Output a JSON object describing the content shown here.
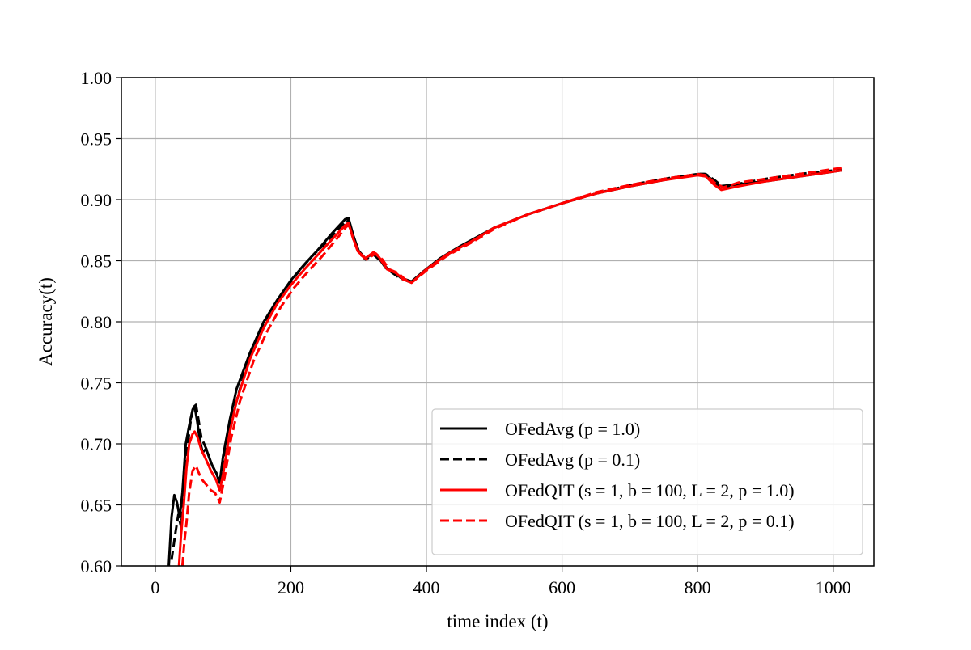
{
  "chart_data": {
    "type": "line",
    "title": "",
    "xlabel": "time index (t)",
    "ylabel": "Accuracy(t)",
    "xlim": [
      -50,
      1060
    ],
    "ylim": [
      0.6,
      1.0
    ],
    "xticks": [
      0,
      200,
      400,
      600,
      800,
      1000
    ],
    "yticks": [
      0.6,
      0.65,
      0.7,
      0.75,
      0.8,
      0.85,
      0.9,
      0.95,
      1.0
    ],
    "xtick_labels": [
      "0",
      "200",
      "400",
      "600",
      "800",
      "1000"
    ],
    "ytick_labels": [
      "0.60",
      "0.65",
      "0.70",
      "0.75",
      "0.80",
      "0.85",
      "0.90",
      "0.95",
      "1.00"
    ],
    "grid": true,
    "legend_position": "lower-right",
    "series": [
      {
        "name": "OFedAvg (p = 1.0)",
        "color": "#000000",
        "dash": "solid",
        "points": [
          [
            20,
            0.6
          ],
          [
            24,
            0.64
          ],
          [
            28,
            0.658
          ],
          [
            32,
            0.652
          ],
          [
            36,
            0.64
          ],
          [
            40,
            0.66
          ],
          [
            45,
            0.7
          ],
          [
            50,
            0.715
          ],
          [
            55,
            0.728
          ],
          [
            58,
            0.731
          ],
          [
            62,
            0.718
          ],
          [
            66,
            0.702
          ],
          [
            70,
            0.693
          ],
          [
            75,
            0.696
          ],
          [
            80,
            0.688
          ],
          [
            85,
            0.681
          ],
          [
            90,
            0.676
          ],
          [
            95,
            0.668
          ],
          [
            100,
            0.69
          ],
          [
            110,
            0.72
          ],
          [
            120,
            0.745
          ],
          [
            140,
            0.775
          ],
          [
            160,
            0.8
          ],
          [
            180,
            0.818
          ],
          [
            200,
            0.834
          ],
          [
            220,
            0.847
          ],
          [
            240,
            0.859
          ],
          [
            260,
            0.872
          ],
          [
            280,
            0.884
          ],
          [
            285,
            0.885
          ],
          [
            292,
            0.871
          ],
          [
            300,
            0.858
          ],
          [
            310,
            0.852
          ],
          [
            322,
            0.856
          ],
          [
            330,
            0.852
          ],
          [
            340,
            0.844
          ],
          [
            352,
            0.841
          ],
          [
            362,
            0.836
          ],
          [
            378,
            0.833
          ],
          [
            395,
            0.841
          ],
          [
            420,
            0.852
          ],
          [
            450,
            0.862
          ],
          [
            500,
            0.877
          ],
          [
            550,
            0.888
          ],
          [
            600,
            0.897
          ],
          [
            650,
            0.905
          ],
          [
            700,
            0.911
          ],
          [
            750,
            0.916
          ],
          [
            800,
            0.921
          ],
          [
            810,
            0.921
          ],
          [
            820,
            0.917
          ],
          [
            832,
            0.911
          ],
          [
            850,
            0.912
          ],
          [
            900,
            0.915
          ],
          [
            950,
            0.919
          ],
          [
            1000,
            0.923
          ],
          [
            1012,
            0.924
          ]
        ]
      },
      {
        "name": "OFedAvg (p = 0.1)",
        "color": "#000000",
        "dash": "dashed",
        "points": [
          [
            24,
            0.605
          ],
          [
            30,
            0.628
          ],
          [
            34,
            0.642
          ],
          [
            38,
            0.632
          ],
          [
            42,
            0.655
          ],
          [
            48,
            0.7
          ],
          [
            52,
            0.718
          ],
          [
            56,
            0.73
          ],
          [
            60,
            0.732
          ],
          [
            63,
            0.722
          ],
          [
            68,
            0.705
          ],
          [
            72,
            0.7
          ],
          [
            76,
            0.695
          ],
          [
            82,
            0.685
          ],
          [
            88,
            0.678
          ],
          [
            96,
            0.671
          ],
          [
            105,
            0.695
          ],
          [
            115,
            0.725
          ],
          [
            130,
            0.755
          ],
          [
            150,
            0.785
          ],
          [
            170,
            0.808
          ],
          [
            190,
            0.826
          ],
          [
            210,
            0.84
          ],
          [
            230,
            0.853
          ],
          [
            250,
            0.864
          ],
          [
            270,
            0.876
          ],
          [
            283,
            0.883
          ],
          [
            292,
            0.87
          ],
          [
            300,
            0.858
          ],
          [
            310,
            0.851
          ],
          [
            322,
            0.855
          ],
          [
            332,
            0.85
          ],
          [
            345,
            0.842
          ],
          [
            360,
            0.836
          ],
          [
            378,
            0.832
          ],
          [
            400,
            0.843
          ],
          [
            430,
            0.855
          ],
          [
            470,
            0.867
          ],
          [
            500,
            0.877
          ],
          [
            550,
            0.888
          ],
          [
            600,
            0.897
          ],
          [
            650,
            0.905
          ],
          [
            700,
            0.912
          ],
          [
            750,
            0.917
          ],
          [
            800,
            0.921
          ],
          [
            812,
            0.921
          ],
          [
            825,
            0.916
          ],
          [
            838,
            0.91
          ],
          [
            860,
            0.913
          ],
          [
            900,
            0.917
          ],
          [
            950,
            0.921
          ],
          [
            1000,
            0.924
          ],
          [
            1012,
            0.925
          ]
        ]
      },
      {
        "name": "OFedQIT (s = 1, b = 100, L = 2, p = 1.0)",
        "color": "#ff0000",
        "dash": "solid",
        "points": [
          [
            35,
            0.6
          ],
          [
            38,
            0.625
          ],
          [
            42,
            0.65
          ],
          [
            46,
            0.68
          ],
          [
            50,
            0.7
          ],
          [
            55,
            0.708
          ],
          [
            58,
            0.71
          ],
          [
            62,
            0.706
          ],
          [
            68,
            0.695
          ],
          [
            75,
            0.687
          ],
          [
            82,
            0.678
          ],
          [
            90,
            0.67
          ],
          [
            95,
            0.662
          ],
          [
            100,
            0.675
          ],
          [
            110,
            0.71
          ],
          [
            120,
            0.735
          ],
          [
            140,
            0.77
          ],
          [
            160,
            0.795
          ],
          [
            180,
            0.815
          ],
          [
            200,
            0.83
          ],
          [
            220,
            0.843
          ],
          [
            240,
            0.855
          ],
          [
            260,
            0.867
          ],
          [
            280,
            0.879
          ],
          [
            285,
            0.881
          ],
          [
            292,
            0.868
          ],
          [
            300,
            0.857
          ],
          [
            310,
            0.852
          ],
          [
            322,
            0.857
          ],
          [
            330,
            0.853
          ],
          [
            342,
            0.843
          ],
          [
            355,
            0.84
          ],
          [
            365,
            0.835
          ],
          [
            378,
            0.832
          ],
          [
            400,
            0.843
          ],
          [
            430,
            0.855
          ],
          [
            470,
            0.867
          ],
          [
            500,
            0.877
          ],
          [
            550,
            0.888
          ],
          [
            600,
            0.897
          ],
          [
            650,
            0.905
          ],
          [
            700,
            0.911
          ],
          [
            750,
            0.916
          ],
          [
            800,
            0.92
          ],
          [
            812,
            0.919
          ],
          [
            825,
            0.912
          ],
          [
            835,
            0.908
          ],
          [
            860,
            0.911
          ],
          [
            900,
            0.915
          ],
          [
            950,
            0.919
          ],
          [
            1000,
            0.923
          ],
          [
            1012,
            0.924
          ]
        ]
      },
      {
        "name": "OFedQIT (s = 1, b = 100, L = 2, p = 0.1)",
        "color": "#ff0000",
        "dash": "dashed",
        "points": [
          [
            40,
            0.6
          ],
          [
            43,
            0.62
          ],
          [
            46,
            0.635
          ],
          [
            50,
            0.66
          ],
          [
            55,
            0.678
          ],
          [
            60,
            0.682
          ],
          [
            65,
            0.675
          ],
          [
            70,
            0.67
          ],
          [
            76,
            0.666
          ],
          [
            82,
            0.662
          ],
          [
            88,
            0.66
          ],
          [
            95,
            0.652
          ],
          [
            102,
            0.672
          ],
          [
            112,
            0.705
          ],
          [
            125,
            0.735
          ],
          [
            145,
            0.768
          ],
          [
            165,
            0.792
          ],
          [
            185,
            0.812
          ],
          [
            205,
            0.828
          ],
          [
            225,
            0.841
          ],
          [
            245,
            0.853
          ],
          [
            265,
            0.866
          ],
          [
            282,
            0.878
          ],
          [
            286,
            0.879
          ],
          [
            293,
            0.866
          ],
          [
            300,
            0.856
          ],
          [
            312,
            0.851
          ],
          [
            325,
            0.856
          ],
          [
            335,
            0.851
          ],
          [
            345,
            0.843
          ],
          [
            358,
            0.84
          ],
          [
            368,
            0.835
          ],
          [
            378,
            0.832
          ],
          [
            400,
            0.842
          ],
          [
            430,
            0.854
          ],
          [
            470,
            0.866
          ],
          [
            500,
            0.876
          ],
          [
            550,
            0.888
          ],
          [
            600,
            0.897
          ],
          [
            650,
            0.906
          ],
          [
            700,
            0.912
          ],
          [
            750,
            0.917
          ],
          [
            800,
            0.921
          ],
          [
            812,
            0.92
          ],
          [
            825,
            0.914
          ],
          [
            838,
            0.91
          ],
          [
            860,
            0.914
          ],
          [
            900,
            0.917
          ],
          [
            950,
            0.921
          ],
          [
            1000,
            0.925
          ],
          [
            1012,
            0.926
          ]
        ]
      }
    ]
  }
}
